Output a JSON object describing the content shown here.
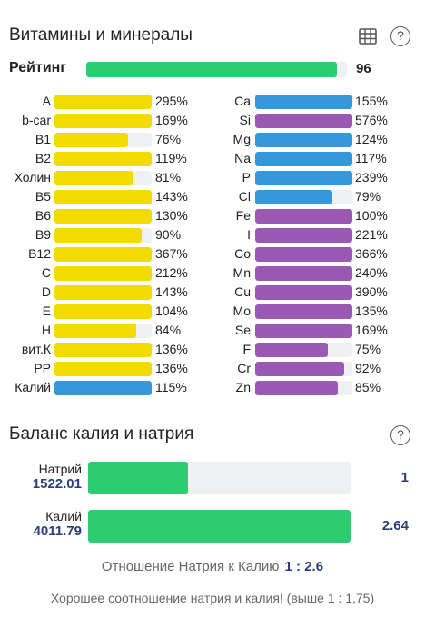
{
  "vitamins_section": {
    "title": "Витамины и минералы",
    "table_icon": "table-icon",
    "help_icon": "help-circle-icon",
    "help_glyph": "?"
  },
  "rating": {
    "label": "Рейтинг",
    "value": "96",
    "fraction": 0.96,
    "color": "#2ecc71"
  },
  "colors": {
    "yellow": "#f2dc00",
    "blue": "#3498db",
    "purple": "#9b59b6",
    "green": "#2ecc71",
    "track": "#eef0f2"
  },
  "left_column": [
    {
      "name": "A",
      "pct": "295%",
      "fill": 1.0,
      "color": "#f2dc00"
    },
    {
      "name": "b-car",
      "pct": "169%",
      "fill": 1.0,
      "color": "#f2dc00"
    },
    {
      "name": "B1",
      "pct": "76%",
      "fill": 0.76,
      "color": "#f2dc00"
    },
    {
      "name": "B2",
      "pct": "119%",
      "fill": 1.0,
      "color": "#f2dc00"
    },
    {
      "name": "Холин",
      "pct": "81%",
      "fill": 0.81,
      "color": "#f2dc00"
    },
    {
      "name": "B5",
      "pct": "143%",
      "fill": 1.0,
      "color": "#f2dc00"
    },
    {
      "name": "B6",
      "pct": "130%",
      "fill": 1.0,
      "color": "#f2dc00"
    },
    {
      "name": "B9",
      "pct": "90%",
      "fill": 0.9,
      "color": "#f2dc00"
    },
    {
      "name": "B12",
      "pct": "367%",
      "fill": 1.0,
      "color": "#f2dc00"
    },
    {
      "name": "C",
      "pct": "212%",
      "fill": 1.0,
      "color": "#f2dc00"
    },
    {
      "name": "D",
      "pct": "143%",
      "fill": 1.0,
      "color": "#f2dc00"
    },
    {
      "name": "E",
      "pct": "104%",
      "fill": 1.0,
      "color": "#f2dc00"
    },
    {
      "name": "H",
      "pct": "84%",
      "fill": 0.84,
      "color": "#f2dc00"
    },
    {
      "name": "вит.К",
      "pct": "136%",
      "fill": 1.0,
      "color": "#f2dc00"
    },
    {
      "name": "PP",
      "pct": "136%",
      "fill": 1.0,
      "color": "#f2dc00"
    },
    {
      "name": "Калий",
      "pct": "115%",
      "fill": 1.0,
      "color": "#3498db"
    }
  ],
  "right_column": [
    {
      "name": "Ca",
      "pct": "155%",
      "fill": 1.0,
      "color": "#3498db"
    },
    {
      "name": "Si",
      "pct": "576%",
      "fill": 1.0,
      "color": "#9b59b6"
    },
    {
      "name": "Mg",
      "pct": "124%",
      "fill": 1.0,
      "color": "#3498db"
    },
    {
      "name": "Na",
      "pct": "117%",
      "fill": 1.0,
      "color": "#3498db"
    },
    {
      "name": "P",
      "pct": "239%",
      "fill": 1.0,
      "color": "#3498db"
    },
    {
      "name": "Cl",
      "pct": "79%",
      "fill": 0.79,
      "color": "#3498db"
    },
    {
      "name": "Fe",
      "pct": "100%",
      "fill": 1.0,
      "color": "#9b59b6"
    },
    {
      "name": "I",
      "pct": "221%",
      "fill": 1.0,
      "color": "#9b59b6"
    },
    {
      "name": "Co",
      "pct": "366%",
      "fill": 1.0,
      "color": "#9b59b6"
    },
    {
      "name": "Mn",
      "pct": "240%",
      "fill": 1.0,
      "color": "#9b59b6"
    },
    {
      "name": "Cu",
      "pct": "390%",
      "fill": 1.0,
      "color": "#9b59b6"
    },
    {
      "name": "Mo",
      "pct": "135%",
      "fill": 1.0,
      "color": "#9b59b6"
    },
    {
      "name": "Se",
      "pct": "169%",
      "fill": 1.0,
      "color": "#9b59b6"
    },
    {
      "name": "F",
      "pct": "75%",
      "fill": 0.75,
      "color": "#9b59b6"
    },
    {
      "name": "Cr",
      "pct": "92%",
      "fill": 0.92,
      "color": "#9b59b6"
    },
    {
      "name": "Zn",
      "pct": "85%",
      "fill": 0.85,
      "color": "#9b59b6"
    }
  ],
  "balance_section": {
    "title": "Баланс калия и натрия",
    "help_icon": "help-circle-icon",
    "help_glyph": "?",
    "sodium": {
      "label": "Натрий",
      "amount": "1522.01",
      "ratio": "1",
      "fraction": 0.38
    },
    "potassium": {
      "label": "Калий",
      "amount": "4011.79",
      "ratio": "2.64",
      "fraction": 1.0
    },
    "ratio_text": "Отношение Натрия к Калию",
    "ratio_value": "1 : 2.6",
    "good_text": "Хорошее соотношение натрия и калия! (выше 1 : 1,75)"
  }
}
